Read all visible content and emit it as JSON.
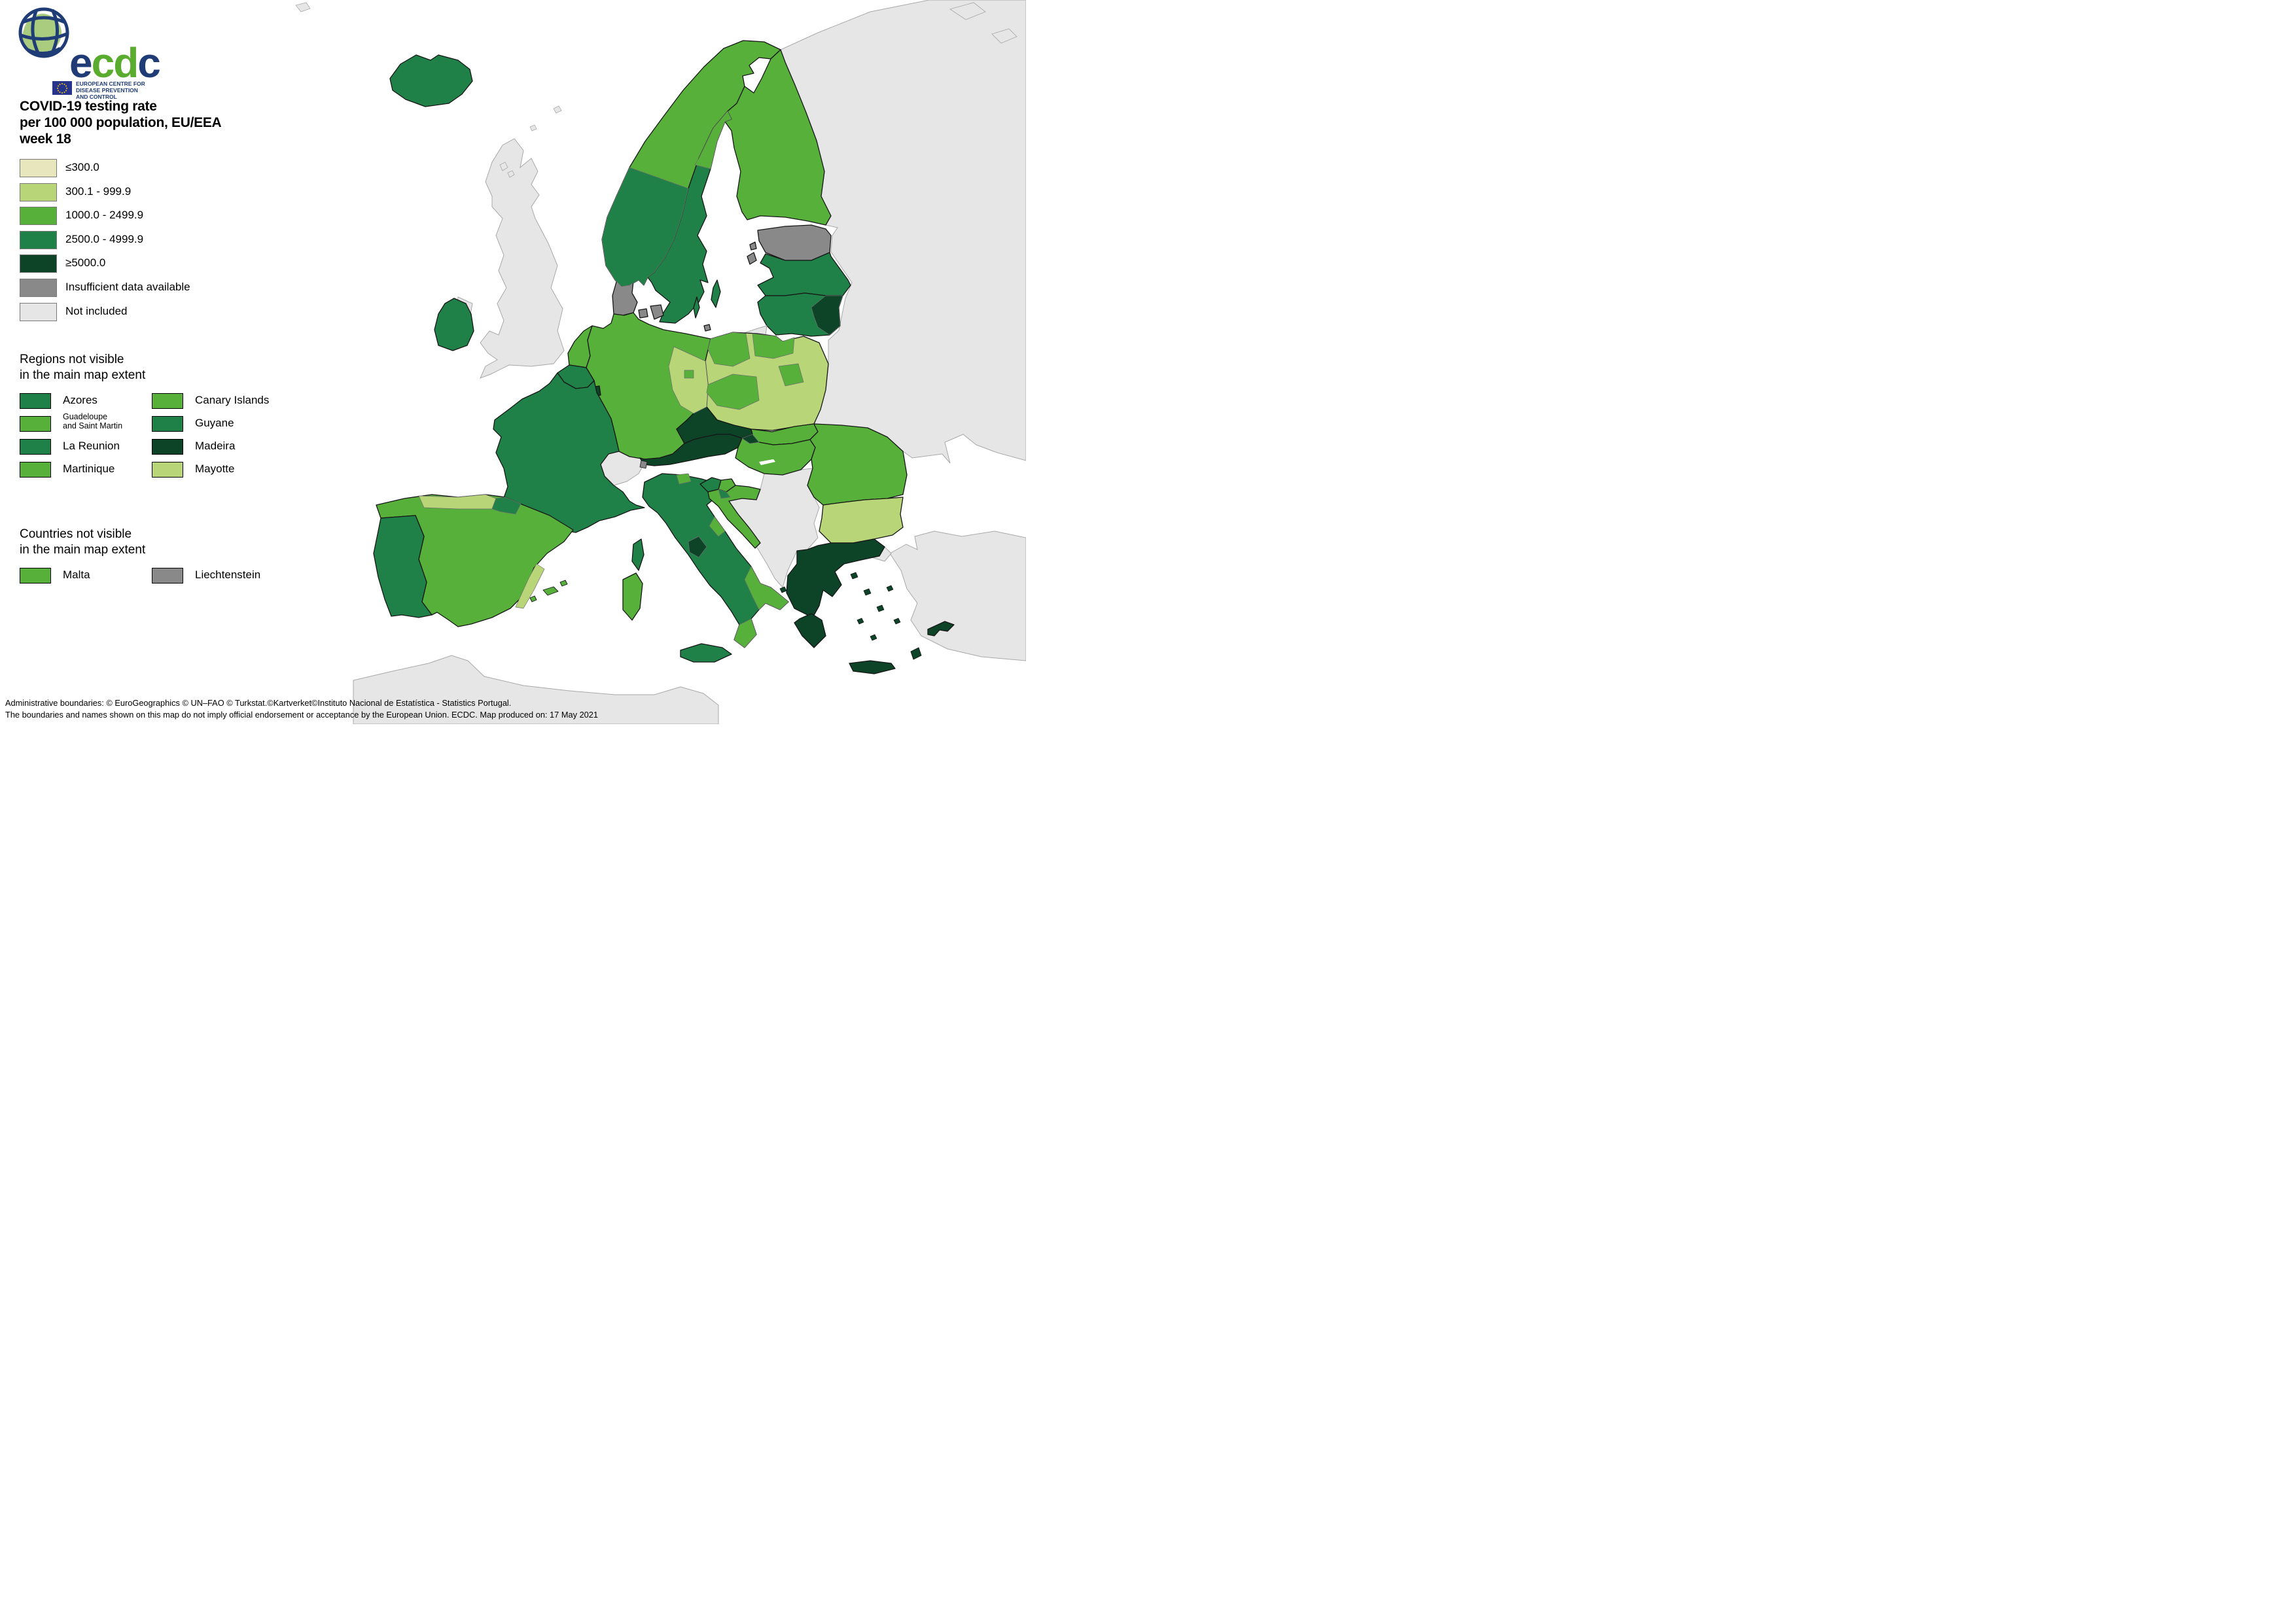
{
  "logo": {
    "brand": "ecdc",
    "brand_colors": {
      "e": "#1f3c77",
      "c1": "#5aac2e",
      "d": "#5aac2e",
      "c2": "#1f3c77"
    },
    "org_line1": "EUROPEAN CENTRE FOR",
    "org_line2": "DISEASE PREVENTION",
    "org_line3": "AND CONTROL"
  },
  "title": {
    "line1": "COVID-19 testing rate",
    "line2": "per 100 000 population, EU/EEA",
    "line3": "week 18"
  },
  "palette": {
    "c1": "#e7e6bd",
    "c2": "#b8d578",
    "c3": "#56b03a",
    "c4": "#1f8147",
    "c5": "#0d4327",
    "insufficient": "#898989",
    "not_included": "#e6e6e6",
    "sea": "#ffffff"
  },
  "legend": {
    "items": [
      {
        "label": "≤300.0",
        "class": "c1"
      },
      {
        "label": "300.1 - 999.9",
        "class": "c2"
      },
      {
        "label": "1000.0 - 2499.9",
        "class": "c3"
      },
      {
        "label": "2500.0 - 4999.9",
        "class": "c4"
      },
      {
        "label": "≥5000.0",
        "class": "c5"
      },
      {
        "label": "Insufficient data available",
        "class": "insufficient"
      },
      {
        "label": "Not included",
        "class": "not_included"
      }
    ]
  },
  "regions_not_visible": {
    "heading_line1": "Regions not visible",
    "heading_line2": "in the main map extent",
    "items": [
      {
        "label": "Azores",
        "class": "c4"
      },
      {
        "label": "Canary Islands",
        "class": "c3"
      },
      {
        "label_line1": "Guadeloupe",
        "label_line2": "and Saint Martin",
        "class": "c3"
      },
      {
        "label": "Guyane",
        "class": "c4"
      },
      {
        "label": "La Reunion",
        "class": "c4"
      },
      {
        "label": "Madeira",
        "class": "c5"
      },
      {
        "label": "Martinique",
        "class": "c3"
      },
      {
        "label": "Mayotte",
        "class": "c2"
      }
    ]
  },
  "countries_not_visible": {
    "heading_line1": "Countries not visible",
    "heading_line2": "in the main map extent",
    "items": [
      {
        "label": "Malta",
        "class": "c3"
      },
      {
        "label": "Liechtenstein",
        "class": "insufficient"
      }
    ]
  },
  "footer": {
    "line1": "Administrative boundaries: © EuroGeographics © UN–FAO © Turkstat.©Kartverket©Instituto Nacional de Estatística - Statistics Portugal.",
    "line2": "The boundaries and names shown on this map do not imply official endorsement or acceptance by the European Union. ECDC. Map produced on: 17 May 2021"
  },
  "map": {
    "region_fills": {
      "iceland": "c4",
      "norway": "c3",
      "norway-south": "c4",
      "sweden": "c4",
      "sweden-northeast": "c3",
      "gotland": "c4",
      "oland": "c4",
      "finland": "c3",
      "denmark": "insufficient",
      "funen": "insufficient",
      "zealand": "insufficient",
      "bornholm": "insufficient",
      "estonia": "insufficient",
      "estonia-islands": "insufficient",
      "latvia": "c4",
      "lithuania": "c4",
      "lithuania-southeast": "c5",
      "kaliningrad": "not_included",
      "ireland": "c4",
      "northern-ireland": "not_included",
      "uk": "not_included",
      "faroe": "not_included",
      "netherlands": "c3",
      "belgium": "c4",
      "luxembourg": "c5",
      "germany": "c3",
      "germany-east": "c2",
      "berlin": "c3",
      "poland": "c2",
      "poland-northwest": "c3",
      "poland-pomerania": "c3",
      "poland-west": "c3",
      "poland-central": "c3",
      "czechia": "c5",
      "slovakia": "c3",
      "slovakia-west": "c5",
      "austria": "c5",
      "switzerland": "not_included",
      "liechtenstein": "insufficient",
      "france": "c4",
      "corsica": "c4",
      "portugal": "c4",
      "spain": "c3",
      "spain-north": "c2",
      "spain-basque": "c4",
      "spain-valencia": "c2",
      "balearics": "c3",
      "italy": "c4",
      "italy-trentino": "c3",
      "italy-marche": "c3",
      "italy-umbria": "c5",
      "italy-southeast": "c3",
      "italy-calabria": "c3",
      "sardinia": "c3",
      "sicily": "c4",
      "slovenia-west": "c4",
      "slovenia-east": "c3",
      "croatia": "c3",
      "croatia-northwest": "c4",
      "hungary": "c3",
      "romania": "c3",
      "bulgaria": "c2",
      "greece": "c5",
      "peloponnese": "c5",
      "crete": "c5",
      "rhodes": "c5",
      "aegean-islands": "c5",
      "cyprus": "c5",
      "eastern-europe": "not_included",
      "western-balkans": "not_included",
      "turkey": "not_included",
      "east-thrace": "not_included",
      "north-africa": "not_included",
      "islands-north": "not_included"
    }
  }
}
